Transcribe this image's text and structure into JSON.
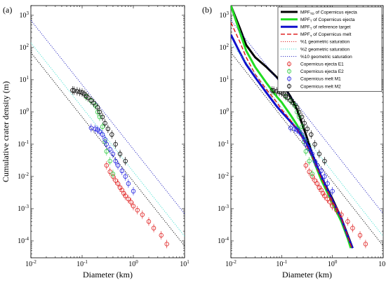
{
  "chart_data": [
    {
      "type": "scatter",
      "panel": "(a)",
      "xlabel": "Diameter (km)",
      "ylabel": "Cumulative crater density (m)",
      "xscale": "log",
      "yscale": "log",
      "xlim": [
        0.01,
        10
      ],
      "ylim": [
        3e-05,
        2000
      ],
      "x_ticks": [
        "10^-2",
        "10^-1",
        "10^0",
        "10^1"
      ],
      "y_ticks": [
        "10^-4",
        "10^-3",
        "10^-2",
        "10^-1",
        "10^0",
        "10^1",
        "10^2",
        "10^3"
      ],
      "lines": [
        {
          "name": "%1 geometric saturation",
          "color": "#000000",
          "style": "dotted",
          "points": [
            [
              0.01,
              70
            ],
            [
              10,
              7e-05
            ]
          ]
        },
        {
          "name": "%2 geometric saturation",
          "color": "#40e0d0",
          "style": "dotted",
          "points": [
            [
              0.01,
              140
            ],
            [
              10,
              0.00014
            ]
          ]
        },
        {
          "name": "%10 geometric saturation",
          "color": "#1f1fbf",
          "style": "dotted",
          "points": [
            [
              0.01,
              700
            ],
            [
              10,
              0.0007
            ]
          ]
        }
      ],
      "series": [
        {
          "name": "Copernicus ejecta E1",
          "color": "#e02020",
          "points": [
            [
              0.3,
              0.022
            ],
            [
              0.35,
              0.014
            ],
            [
              0.4,
              0.01
            ],
            [
              0.45,
              0.0075
            ],
            [
              0.5,
              0.006
            ],
            [
              0.55,
              0.0045
            ],
            [
              0.6,
              0.0038
            ],
            [
              0.65,
              0.003
            ],
            [
              0.7,
              0.0025
            ],
            [
              0.8,
              0.002
            ],
            [
              0.9,
              0.0016
            ],
            [
              1.0,
              0.0012
            ],
            [
              1.2,
              0.0009
            ],
            [
              1.5,
              0.00065
            ],
            [
              2.0,
              0.0004
            ],
            [
              2.5,
              0.00025
            ],
            [
              3.5,
              0.00015
            ],
            [
              4.5,
              8e-05
            ]
          ]
        },
        {
          "name": "Copernicus ejecta E2",
          "color": "#2ecc40",
          "points": [
            [
              0.12,
              3.0
            ],
            [
              0.15,
              2.2
            ],
            [
              0.18,
              1.6
            ],
            [
              0.2,
              1.0
            ],
            [
              0.22,
              0.7
            ],
            [
              0.25,
              0.35
            ],
            [
              0.28,
              0.12
            ],
            [
              0.3,
              0.06
            ],
            [
              0.35,
              0.03
            ],
            [
              0.4,
              0.012
            ]
          ]
        },
        {
          "name": "Copernicus melt M1",
          "color": "#1f1fe0",
          "points": [
            [
              0.15,
              0.32
            ],
            [
              0.18,
              0.3
            ],
            [
              0.2,
              0.28
            ],
            [
              0.22,
              0.25
            ],
            [
              0.25,
              0.2
            ],
            [
              0.28,
              0.14
            ],
            [
              0.3,
              0.1
            ],
            [
              0.35,
              0.07
            ],
            [
              0.4,
              0.05
            ],
            [
              0.45,
              0.03
            ],
            [
              0.5,
              0.022
            ],
            [
              0.6,
              0.015
            ],
            [
              0.7,
              0.01
            ],
            [
              0.8,
              0.006
            ],
            [
              1.0,
              0.0035
            ]
          ]
        },
        {
          "name": "Copernicus melt M2",
          "color": "#000000",
          "points": [
            [
              0.065,
              4.7
            ],
            [
              0.07,
              4.6
            ],
            [
              0.08,
              4.4
            ],
            [
              0.09,
              4.2
            ],
            [
              0.1,
              4.0
            ],
            [
              0.11,
              3.6
            ],
            [
              0.12,
              3.2
            ],
            [
              0.13,
              2.8
            ],
            [
              0.15,
              2.3
            ],
            [
              0.17,
              1.9
            ],
            [
              0.2,
              1.4
            ],
            [
              0.22,
              1.0
            ],
            [
              0.25,
              0.7
            ],
            [
              0.28,
              0.45
            ],
            [
              0.32,
              0.3
            ],
            [
              0.38,
              0.2
            ],
            [
              0.45,
              0.1
            ],
            [
              0.55,
              0.05
            ],
            [
              0.7,
              0.03
            ]
          ]
        }
      ],
      "grid": false
    },
    {
      "type": "line",
      "panel": "(b)",
      "xlabel": "Diameter (km)",
      "ylabel": "",
      "xscale": "log",
      "yscale": "log",
      "xlim": [
        0.01,
        10
      ],
      "ylim": [
        3e-05,
        2000
      ],
      "x_ticks": [
        "10^-2",
        "10^-1",
        "10^0",
        "10^1"
      ],
      "y_ticks": [
        "10^-4",
        "10^-3",
        "10^-2",
        "10^-1",
        "10^0",
        "10^1",
        "10^2",
        "10^3"
      ],
      "legend_position": "top-right",
      "legend": [
        {
          "label_main": "MPF",
          "label_sub": "TD",
          "label_rest": " of Copernicus ejecta",
          "color": "#000000",
          "kind": "thick"
        },
        {
          "label_main": "MPF",
          "label_sub": "T",
          "label_rest": " of Copernicus ejecta",
          "color": "#22dd22",
          "kind": "thick"
        },
        {
          "label_main": "MPF",
          "label_sub": "T",
          "label_rest": " of reference target",
          "color": "#1010cc",
          "kind": "thick"
        },
        {
          "label_main": "MPF",
          "label_sub": "T",
          "label_rest": " of Copernicus melt",
          "color": "#dd1111",
          "kind": "dashed"
        },
        {
          "label_main": "%1 geometric saturation",
          "label_sub": "",
          "label_rest": "",
          "color": "#dd1111",
          "kind": "dotted"
        },
        {
          "label_main": "%2 geometric saturation",
          "label_sub": "",
          "label_rest": "",
          "color": "#40e0d0",
          "kind": "dotted"
        },
        {
          "label_main": "%10 geometric saturation",
          "label_sub": "",
          "label_rest": "",
          "color": "#1f1fbf",
          "kind": "dotted"
        },
        {
          "label_main": "Copernicus ejecta E1",
          "label_sub": "",
          "label_rest": "",
          "color": "#e02020",
          "kind": "marker"
        },
        {
          "label_main": "Copernicus ejecta E2",
          "label_sub": "",
          "label_rest": "",
          "color": "#2ecc40",
          "kind": "marker"
        },
        {
          "label_main": "Copernicus melt M1",
          "label_sub": "",
          "label_rest": "",
          "color": "#1f1fe0",
          "kind": "marker"
        },
        {
          "label_main": "Copernicus melt M2",
          "label_sub": "",
          "label_rest": "",
          "color": "#000000",
          "kind": "marker"
        }
      ],
      "lines": [
        {
          "name": "MPFTD of Copernicus ejecta",
          "color": "#000000",
          "style": "thick",
          "points": [
            [
              0.01,
              2000
            ],
            [
              0.015,
              400
            ],
            [
              0.02,
              120
            ],
            [
              0.03,
              50
            ],
            [
              0.05,
              25
            ],
            [
              0.08,
              12
            ],
            [
              0.1,
              8
            ],
            [
              0.15,
              3
            ],
            [
              0.2,
              1.2
            ],
            [
              0.3,
              0.2
            ],
            [
              0.4,
              0.05
            ],
            [
              0.6,
              0.01
            ],
            [
              1.0,
              0.002
            ],
            [
              1.5,
              0.0005
            ],
            [
              2.0,
              0.00015
            ],
            [
              2.5,
              6e-05
            ]
          ]
        },
        {
          "name": "MPFT of Copernicus ejecta",
          "color": "#22dd22",
          "style": "thick",
          "points": [
            [
              0.01,
              2000
            ],
            [
              0.015,
              300
            ],
            [
              0.02,
              80
            ],
            [
              0.03,
              25
            ],
            [
              0.05,
              8
            ],
            [
              0.08,
              3
            ],
            [
              0.1,
              2
            ],
            [
              0.15,
              0.8
            ],
            [
              0.2,
              0.4
            ],
            [
              0.3,
              0.12
            ],
            [
              0.4,
              0.04
            ],
            [
              0.6,
              0.008
            ],
            [
              1.0,
              0.0015
            ],
            [
              1.5,
              0.0004
            ],
            [
              2.0,
              0.00012
            ],
            [
              2.3,
              6e-05
            ]
          ]
        },
        {
          "name": "MPFT of reference target",
          "color": "#1010cc",
          "style": "thick",
          "points": [
            [
              0.01,
              250
            ],
            [
              0.015,
              70
            ],
            [
              0.02,
              30
            ],
            [
              0.03,
              12
            ],
            [
              0.05,
              4
            ],
            [
              0.08,
              1.5
            ],
            [
              0.1,
              1.0
            ],
            [
              0.15,
              0.5
            ],
            [
              0.2,
              0.3
            ],
            [
              0.3,
              0.12
            ],
            [
              0.4,
              0.05
            ],
            [
              0.6,
              0.01
            ],
            [
              1.0,
              0.0018
            ],
            [
              1.5,
              0.0005
            ],
            [
              2.0,
              0.00014
            ],
            [
              2.5,
              6e-05
            ]
          ]
        },
        {
          "name": "MPFT of Copernicus melt",
          "color": "#dd1111",
          "style": "dashed",
          "points": [
            [
              0.01,
              600
            ],
            [
              0.015,
              150
            ],
            [
              0.02,
              50
            ],
            [
              0.03,
              15
            ],
            [
              0.05,
              5
            ],
            [
              0.08,
              2
            ],
            [
              0.1,
              1.2
            ],
            [
              0.15,
              0.55
            ],
            [
              0.2,
              0.3
            ],
            [
              0.3,
              0.1
            ],
            [
              0.4,
              0.04
            ],
            [
              0.6,
              0.009
            ],
            [
              1.0,
              0.0017
            ],
            [
              1.5,
              0.0005
            ],
            [
              2.0,
              0.00014
            ],
            [
              2.4,
              6e-05
            ]
          ]
        },
        {
          "name": "%1 geometric saturation",
          "color": "#000000",
          "style": "dotted",
          "points": [
            [
              0.01,
              70
            ],
            [
              10,
              7e-05
            ]
          ]
        },
        {
          "name": "%2 geometric saturation",
          "color": "#40e0d0",
          "style": "dotted",
          "points": [
            [
              0.01,
              140
            ],
            [
              10,
              0.00014
            ]
          ]
        },
        {
          "name": "%10 geometric saturation",
          "color": "#1f1fbf",
          "style": "dotted",
          "points": [
            [
              0.01,
              700
            ],
            [
              10,
              0.0007
            ]
          ]
        }
      ],
      "series": [
        {
          "name": "Copernicus ejecta E1",
          "color": "#e02020",
          "points": [
            [
              0.3,
              0.022
            ],
            [
              0.35,
              0.014
            ],
            [
              0.4,
              0.01
            ],
            [
              0.45,
              0.0075
            ],
            [
              0.5,
              0.006
            ],
            [
              0.55,
              0.0045
            ],
            [
              0.6,
              0.0038
            ],
            [
              0.65,
              0.003
            ],
            [
              0.7,
              0.0025
            ],
            [
              0.8,
              0.002
            ],
            [
              0.9,
              0.0016
            ],
            [
              1.0,
              0.0012
            ],
            [
              1.2,
              0.0009
            ],
            [
              1.5,
              0.00065
            ],
            [
              2.0,
              0.0004
            ],
            [
              2.5,
              0.00025
            ],
            [
              3.5,
              0.00015
            ],
            [
              4.5,
              8e-05
            ]
          ]
        },
        {
          "name": "Copernicus ejecta E2",
          "color": "#2ecc40",
          "points": [
            [
              0.12,
              3.0
            ],
            [
              0.15,
              2.2
            ],
            [
              0.18,
              1.6
            ],
            [
              0.2,
              1.0
            ],
            [
              0.22,
              0.7
            ],
            [
              0.25,
              0.35
            ],
            [
              0.28,
              0.12
            ],
            [
              0.3,
              0.06
            ],
            [
              0.35,
              0.03
            ],
            [
              0.4,
              0.012
            ]
          ]
        },
        {
          "name": "Copernicus melt M1",
          "color": "#1f1fe0",
          "points": [
            [
              0.15,
              0.32
            ],
            [
              0.18,
              0.3
            ],
            [
              0.2,
              0.28
            ],
            [
              0.22,
              0.25
            ],
            [
              0.25,
              0.2
            ],
            [
              0.28,
              0.14
            ],
            [
              0.3,
              0.1
            ],
            [
              0.35,
              0.07
            ],
            [
              0.4,
              0.05
            ],
            [
              0.45,
              0.03
            ],
            [
              0.5,
              0.022
            ],
            [
              0.6,
              0.015
            ],
            [
              0.7,
              0.01
            ],
            [
              0.8,
              0.006
            ],
            [
              1.0,
              0.0035
            ]
          ]
        },
        {
          "name": "Copernicus melt M2",
          "color": "#000000",
          "points": [
            [
              0.065,
              4.7
            ],
            [
              0.07,
              4.6
            ],
            [
              0.08,
              4.4
            ],
            [
              0.09,
              4.2
            ],
            [
              0.1,
              4.0
            ],
            [
              0.11,
              3.6
            ],
            [
              0.12,
              3.2
            ],
            [
              0.13,
              2.8
            ],
            [
              0.15,
              2.3
            ],
            [
              0.17,
              1.9
            ],
            [
              0.2,
              1.4
            ],
            [
              0.22,
              1.0
            ],
            [
              0.25,
              0.7
            ],
            [
              0.28,
              0.45
            ],
            [
              0.32,
              0.3
            ],
            [
              0.38,
              0.2
            ],
            [
              0.45,
              0.1
            ],
            [
              0.55,
              0.05
            ],
            [
              0.7,
              0.03
            ]
          ]
        }
      ],
      "grid": false
    }
  ]
}
